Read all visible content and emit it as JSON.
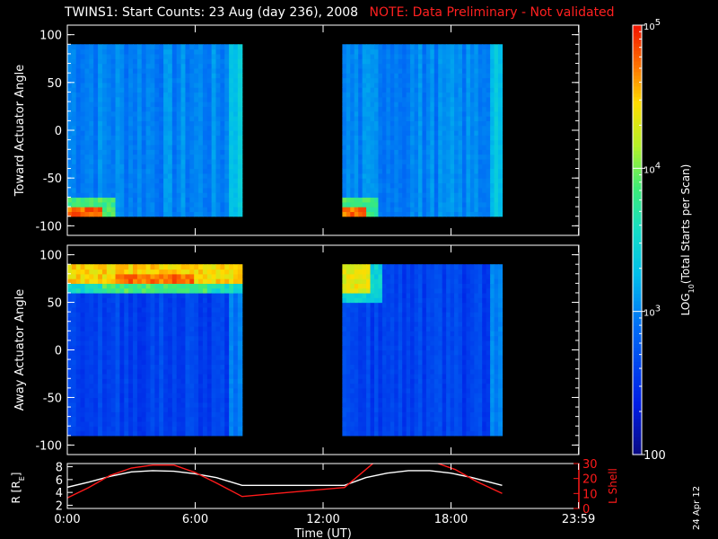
{
  "header": {
    "title": "TWINS1: Start Counts: 23 Aug (day 236), 2008",
    "note": "NOTE: Data Preliminary - Not validated"
  },
  "footnote": "24 Apr 12",
  "colors": {
    "background": "#000000",
    "axes": "#ffffff",
    "note": "#ff2020",
    "r_line": "#ffffff",
    "lshell_line": "#ff1a1a"
  },
  "chart_data": [
    {
      "type": "heatmap",
      "panel": "top",
      "ylabel": "Toward Actuator Angle",
      "xlim": [
        0,
        24
      ],
      "ylim": [
        -110,
        110
      ],
      "yticks": [
        -100,
        -50,
        0,
        50,
        100
      ],
      "xticks": [
        0,
        6,
        12,
        18,
        23.983
      ],
      "data_segments_hours": [
        [
          0,
          8.2
        ],
        [
          12.9,
          20.4
        ]
      ],
      "angle_range": [
        -90,
        90
      ],
      "dominant_level_log10": 3.0,
      "features": [
        {
          "desc": "high counts at low angles",
          "t": [
            0,
            1.6
          ],
          "angle": [
            -90,
            -80
          ],
          "log10": 4.9
        },
        {
          "desc": "high counts at low angles",
          "t": [
            12.9,
            14.0
          ],
          "angle": [
            -90,
            -80
          ],
          "log10": 4.9
        }
      ]
    },
    {
      "type": "heatmap",
      "panel": "middle",
      "ylabel": "Away Actuator Angle",
      "xlim": [
        0,
        24
      ],
      "ylim": [
        -110,
        110
      ],
      "yticks": [
        -100,
        -50,
        0,
        50,
        100
      ],
      "xticks": [
        0,
        6,
        12,
        18,
        23.983
      ],
      "data_segments_hours": [
        [
          0,
          8.2
        ],
        [
          12.9,
          20.4
        ]
      ],
      "angle_range": [
        -90,
        90
      ],
      "dominant_level_log10": 2.6,
      "features": [
        {
          "desc": "high counts near top",
          "t": [
            0.1,
            8.2
          ],
          "angle": [
            70,
            90
          ],
          "log10": 4.6
        },
        {
          "desc": "peak band",
          "t": [
            2.2,
            6.0
          ],
          "angle": [
            72,
            80
          ],
          "log10": 4.9
        },
        {
          "desc": "high counts near top",
          "t": [
            12.9,
            14.2
          ],
          "angle": [
            60,
            90
          ],
          "log10": 4.5
        }
      ]
    },
    {
      "type": "line",
      "panel": "bottom",
      "xlabel": "Time (UT)",
      "xticklabels": [
        "0:00",
        "6:00",
        "12:00",
        "18:00",
        "23:59"
      ],
      "xticks": [
        0,
        6,
        12,
        18,
        23.983
      ],
      "xlim": [
        0,
        24
      ],
      "ylabel_left": "R [R",
      "ylabel_left_sub": "E",
      "ylabel_left_end": "]",
      "ylim_left": [
        1.5,
        8.5
      ],
      "yticks_left": [
        2,
        4,
        6,
        8
      ],
      "ylabel_right": "L Shell",
      "ylim_right": [
        0,
        30
      ],
      "yticks_right": [
        0,
        10,
        20,
        30
      ],
      "series": [
        {
          "axis": "left",
          "color": "#ffffff",
          "x": [
            0,
            1,
            2,
            3,
            4,
            5,
            6,
            7,
            8.2,
            13,
            14,
            15,
            16,
            17,
            18,
            19,
            20.4
          ],
          "y": [
            4.8,
            5.6,
            6.5,
            7.2,
            7.4,
            7.3,
            6.9,
            6.3,
            5.1,
            5.1,
            6.3,
            7.0,
            7.4,
            7.4,
            7.0,
            6.3,
            5.1
          ]
        },
        {
          "axis": "right",
          "color": "#ff1a1a",
          "x": [
            0,
            1,
            2,
            3,
            4,
            5,
            6,
            7,
            8.2,
            13,
            14.5,
            17,
            18.2,
            19.2,
            20.4
          ],
          "y": [
            7,
            14,
            22,
            27,
            29,
            29,
            24,
            17,
            8,
            14,
            32,
            32,
            26,
            18,
            10
          ]
        }
      ]
    },
    {
      "type": "heatmap",
      "panel": "colorbar",
      "label_prefix": "LOG",
      "label_sub": "10",
      "label_suffix": "(Total Starts per Scan)",
      "range_log10": [
        2,
        5
      ],
      "ticks": [
        {
          "log10": 5,
          "base": "10",
          "exp": "5"
        },
        {
          "log10": 4,
          "base": "10",
          "exp": "4"
        },
        {
          "log10": 3,
          "base": "10",
          "exp": "3"
        },
        {
          "log10": 2,
          "base": "100",
          "exp": ""
        }
      ]
    }
  ]
}
